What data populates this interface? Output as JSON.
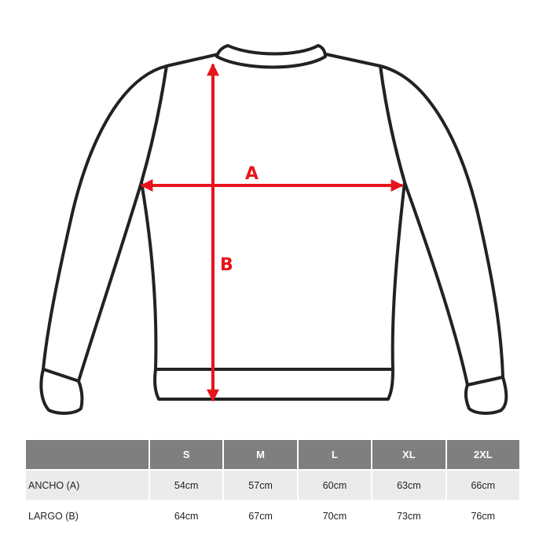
{
  "diagram": {
    "label_a": "A",
    "label_b": "B",
    "arrow_color": "#e8141b",
    "outline_color": "#222222"
  },
  "table": {
    "header_color": "#7f7f7f",
    "columns": [
      "",
      "S",
      "M",
      "L",
      "XL",
      "2XL"
    ],
    "rows": [
      {
        "label": "ANCHO (A)",
        "values": [
          "54cm",
          "57cm",
          "60cm",
          "63cm",
          "66cm"
        ]
      },
      {
        "label": "LARGO (B)",
        "values": [
          "64cm",
          "67cm",
          "70cm",
          "73cm",
          "76cm"
        ]
      }
    ]
  }
}
